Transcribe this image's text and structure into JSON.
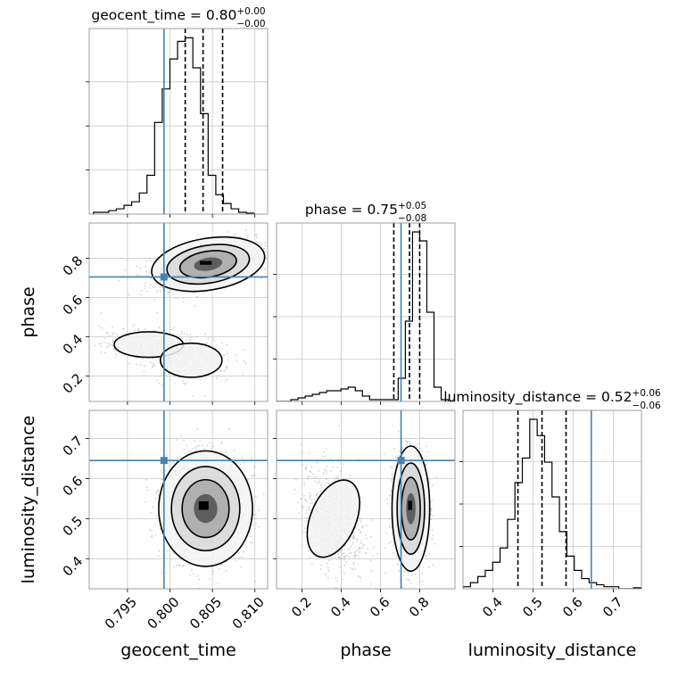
{
  "chart_data": {
    "type": "corner",
    "parameters": [
      {
        "name": "geocent_time",
        "axis_label": "geocent_time",
        "truth": 0.7993,
        "range": [
          0.7905,
          0.8115
        ],
        "ticks": [
          0.795,
          0.8,
          0.805,
          0.81
        ],
        "tick_labels": [
          "0.795",
          "0.800",
          "0.805",
          "0.810"
        ],
        "title_main": "geocent_time = 0.80",
        "title_sup": "+0.00",
        "title_sub": "−0.00",
        "quantiles": [
          0.8018,
          0.8039,
          0.8062
        ],
        "hist": {
          "start": 0.791,
          "step": 0.0009,
          "values": [
            0.01,
            0.01,
            0.02,
            0.03,
            0.05,
            0.07,
            0.12,
            0.22,
            0.52,
            0.71,
            0.88,
            0.98,
            1.0,
            0.83,
            0.57,
            0.22,
            0.11,
            0.06,
            0.03,
            0.01,
            0.005
          ]
        }
      },
      {
        "name": "phase",
        "axis_label": "phase",
        "truth": 0.705,
        "range": [
          0.07,
          0.98
        ],
        "ticks": [
          0.2,
          0.4,
          0.6,
          0.8
        ],
        "tick_labels": [
          "0.2",
          "0.4",
          "0.6",
          "0.8"
        ],
        "title_main": "phase = 0.75",
        "title_sup": "+0.05",
        "title_sub": "−0.08",
        "quantiles": [
          0.668,
          0.748,
          0.8
        ],
        "hist": {
          "start": 0.07,
          "step": 0.0365,
          "values": [
            0.0,
            0.0,
            0.01,
            0.02,
            0.03,
            0.04,
            0.05,
            0.06,
            0.06,
            0.07,
            0.08,
            0.06,
            0.03,
            0.01,
            0.01,
            0.01,
            0.01,
            0.13,
            0.45,
            0.95,
            0.9,
            0.5,
            0.08,
            0.01,
            0.0
          ]
        }
      },
      {
        "name": "luminosity_distance",
        "axis_label": "luminosity_distance",
        "truth": 0.645,
        "range": [
          0.325,
          0.77
        ],
        "ticks": [
          0.4,
          0.5,
          0.6,
          0.7
        ],
        "tick_labels": [
          "0.4",
          "0.5",
          "0.6",
          "0.7"
        ],
        "title_main": "luminosity_distance = 0.52",
        "title_sup": "+0.06",
        "title_sub": "−0.06",
        "quantiles": [
          0.462,
          0.522,
          0.582
        ],
        "hist": {
          "start": 0.325,
          "step": 0.0185,
          "values": [
            0.01,
            0.03,
            0.06,
            0.09,
            0.13,
            0.2,
            0.34,
            0.52,
            0.64,
            0.83,
            0.75,
            0.62,
            0.45,
            0.28,
            0.16,
            0.09,
            0.05,
            0.03,
            0.02,
            0.01,
            0.01,
            0.0,
            0.0,
            0.005
          ]
        }
      }
    ],
    "pairs": [
      {
        "x": "geocent_time",
        "y": "phase",
        "clusters": [
          {
            "cx": 0.8045,
            "cy": 0.77,
            "sx": 0.0028,
            "sy": 0.055,
            "w": 0.8,
            "rho": 0.45
          },
          {
            "cx": 0.7975,
            "cy": 0.36,
            "sx": 0.0028,
            "sy": 0.045,
            "w": 0.12,
            "rho": 0.0
          },
          {
            "cx": 0.8025,
            "cy": 0.28,
            "sx": 0.0025,
            "sy": 0.06,
            "w": 0.08,
            "rho": 0.0
          }
        ]
      },
      {
        "x": "geocent_time",
        "y": "luminosity_distance",
        "clusters": [
          {
            "cx": 0.8042,
            "cy": 0.525,
            "sx": 0.0023,
            "sy": 0.06,
            "w": 1.0,
            "rho": 0.0
          }
        ]
      },
      {
        "x": "phase",
        "y": "luminosity_distance",
        "clusters": [
          {
            "cx": 0.755,
            "cy": 0.525,
            "sx": 0.04,
            "sy": 0.065,
            "w": 0.78,
            "rho": 0.0
          },
          {
            "cx": 0.36,
            "cy": 0.5,
            "sx": 0.08,
            "sy": 0.07,
            "w": 0.22,
            "rho": -0.3
          }
        ]
      }
    ],
    "colors": {
      "truth": "#4682b4",
      "hist": "#000000",
      "points": "#b0b0b0",
      "grid": "#c8c8c8"
    },
    "grid": true,
    "contour_levels": 3
  }
}
